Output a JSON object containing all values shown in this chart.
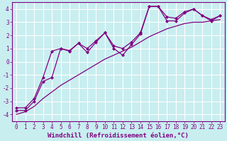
{
  "x": [
    0,
    1,
    2,
    3,
    4,
    5,
    6,
    7,
    8,
    9,
    10,
    11,
    12,
    13,
    14,
    15,
    16,
    17,
    18,
    19,
    20,
    21,
    22,
    23
  ],
  "y_main": [
    -3.7,
    -3.7,
    -3.0,
    -1.5,
    -1.2,
    1.0,
    0.8,
    1.4,
    0.7,
    1.5,
    2.2,
    1.0,
    0.5,
    1.3,
    2.1,
    4.2,
    4.2,
    3.1,
    3.1,
    3.7,
    4.0,
    3.5,
    3.1,
    3.5
  ],
  "y_upper": [
    -3.5,
    -3.5,
    -2.8,
    -1.2,
    0.8,
    1.0,
    0.85,
    1.4,
    1.0,
    1.6,
    2.2,
    1.2,
    1.0,
    1.5,
    2.2,
    4.2,
    4.2,
    3.4,
    3.3,
    3.8,
    4.0,
    3.5,
    3.2,
    3.5
  ],
  "y_lower": [
    -4.0,
    -3.8,
    -3.4,
    -2.8,
    -2.3,
    -1.8,
    -1.4,
    -1.0,
    -0.6,
    -0.2,
    0.2,
    0.5,
    0.8,
    1.1,
    1.5,
    1.9,
    2.2,
    2.5,
    2.7,
    2.9,
    3.0,
    3.0,
    3.1,
    3.2
  ],
  "color": "#800080",
  "bg_color": "#c8eef0",
  "grid_color": "#ffffff",
  "xlabel": "Windchill (Refroidissement éolien,°C)",
  "ylim": [
    -4.5,
    4.5
  ],
  "xlim": [
    -0.5,
    23.5
  ],
  "yticks": [
    -4,
    -3,
    -2,
    -1,
    0,
    1,
    2,
    3,
    4
  ],
  "xticks": [
    0,
    1,
    2,
    3,
    4,
    5,
    6,
    7,
    8,
    9,
    10,
    11,
    12,
    13,
    14,
    15,
    16,
    17,
    18,
    19,
    20,
    21,
    22,
    23
  ],
  "xlabel_fontsize": 6.5,
  "tick_fontsize": 5.5,
  "marker": "D",
  "marker_size": 2.5,
  "line_width": 0.9
}
